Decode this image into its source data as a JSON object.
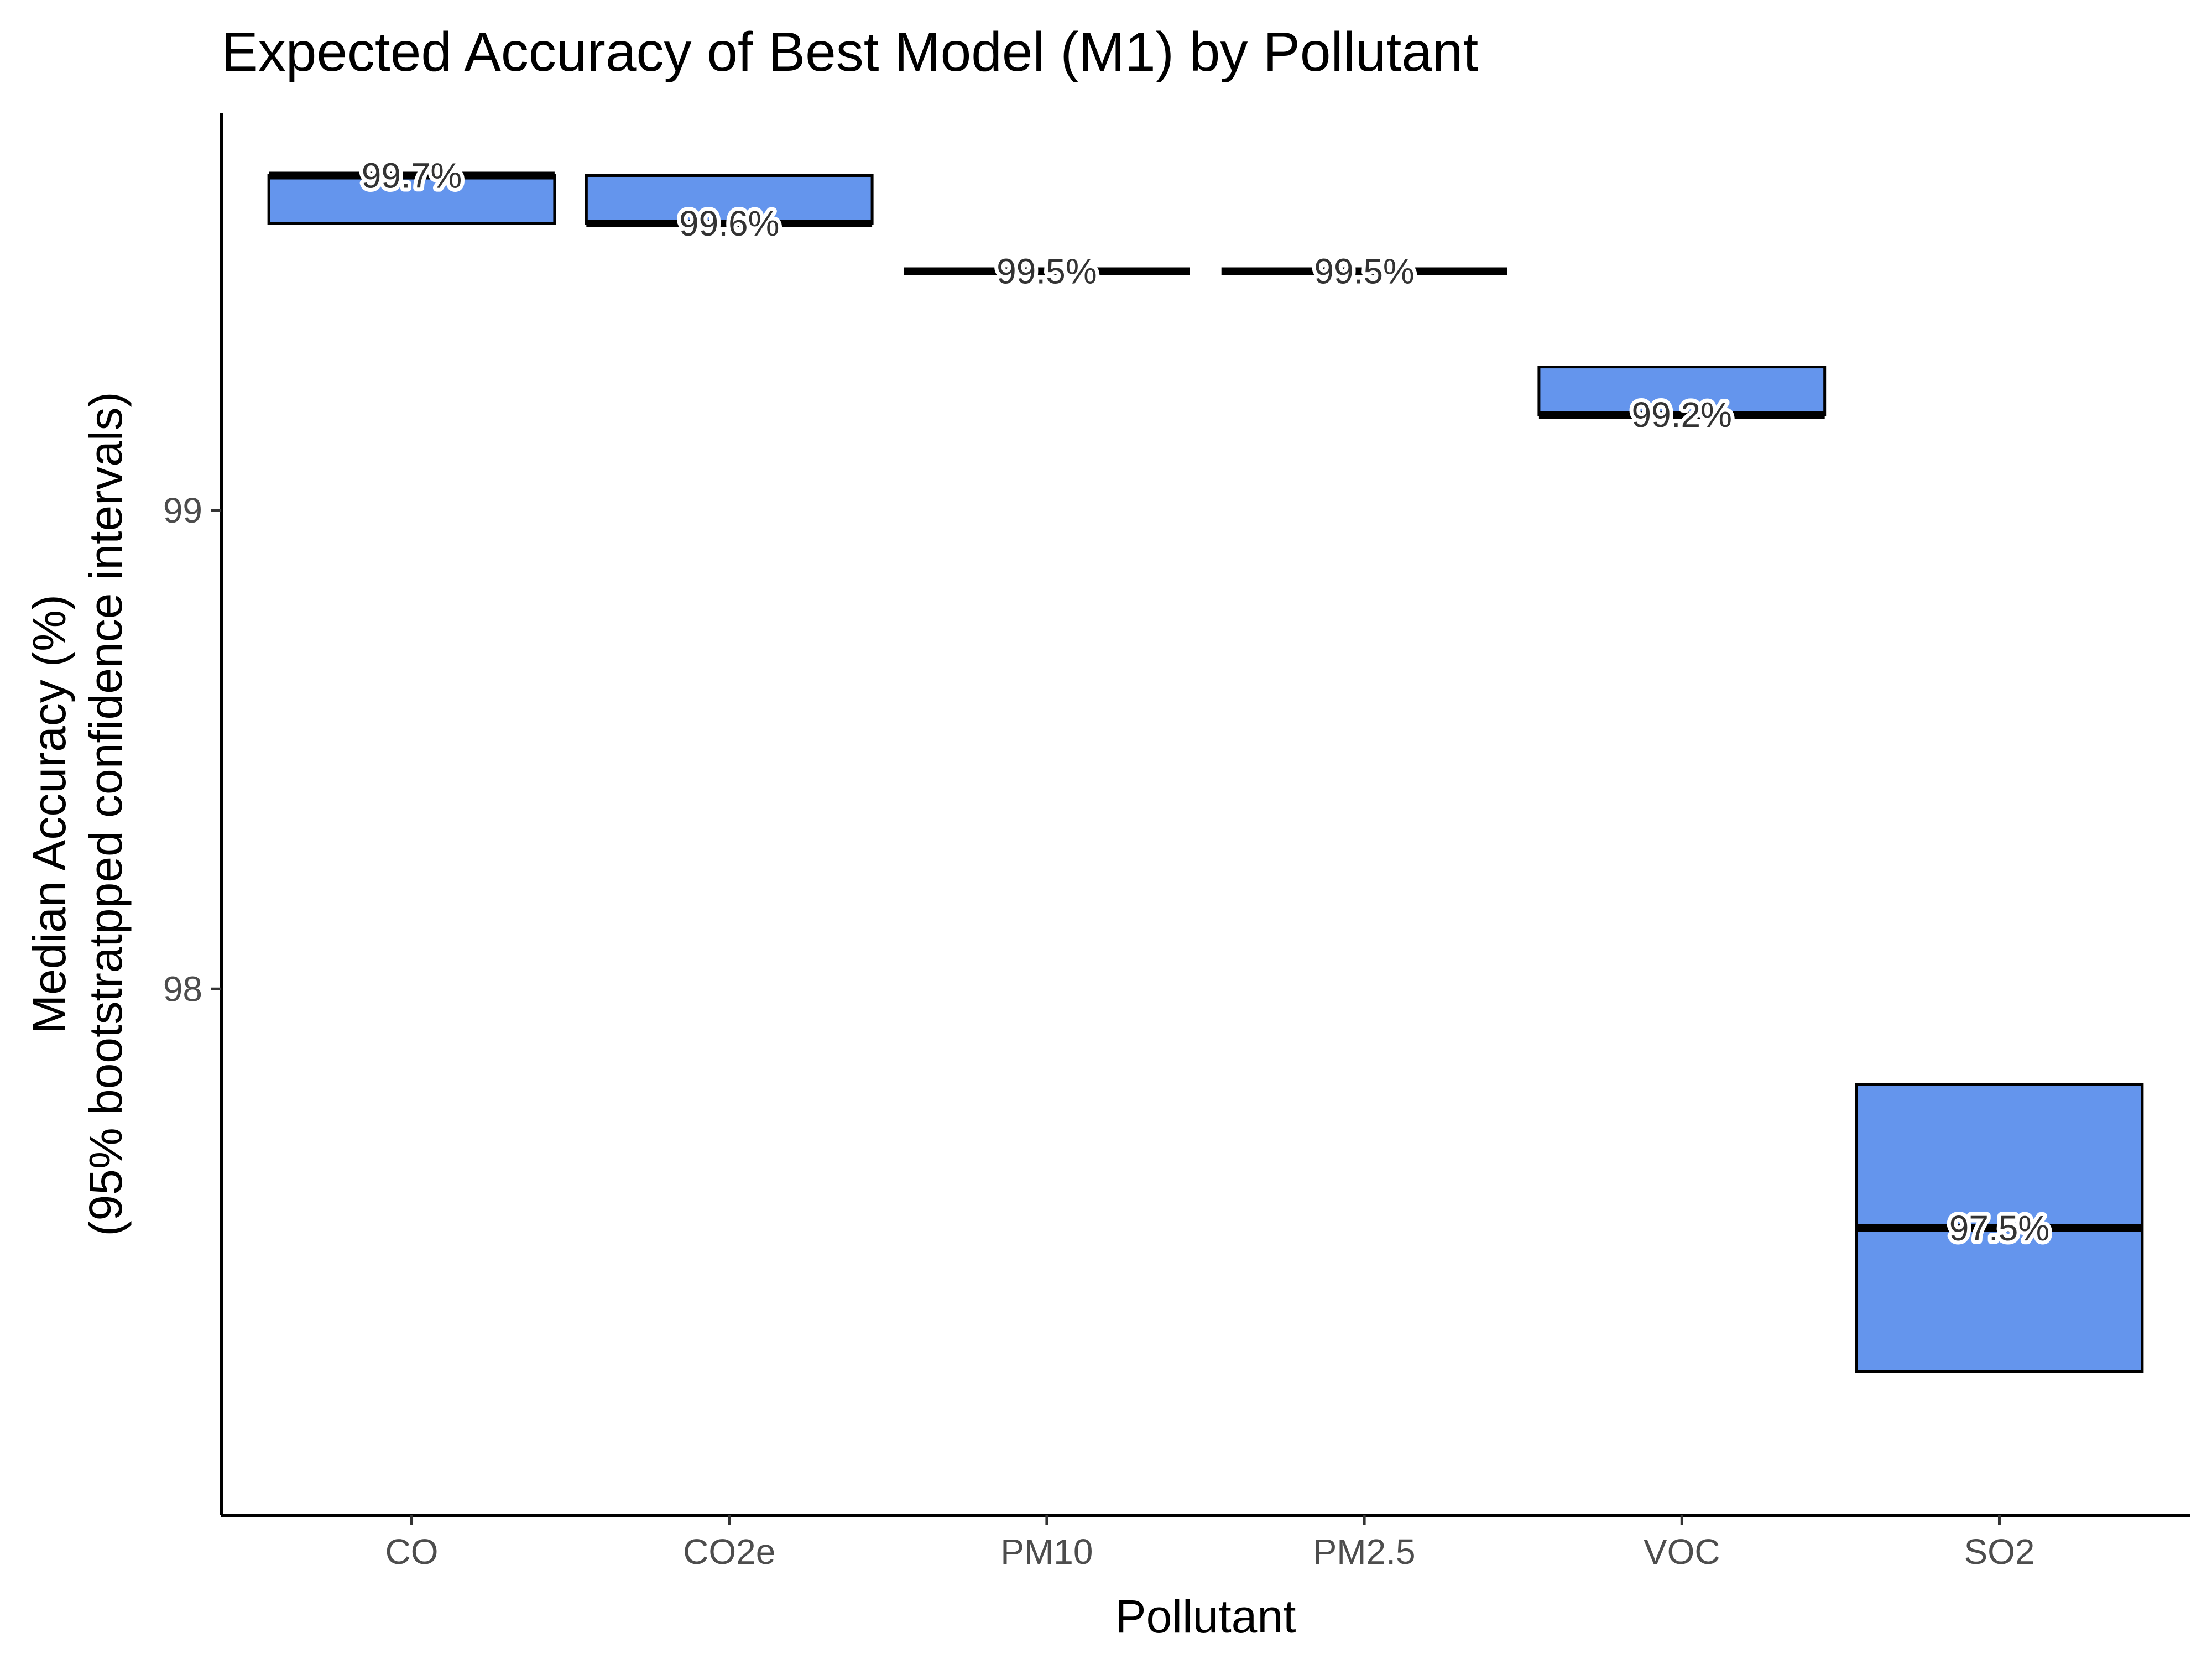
{
  "chart_data": {
    "type": "crossbar",
    "title": "Expected Accuracy of Best Model (M1) by Pollutant",
    "xlabel": "Pollutant",
    "ylabel_line1": "Median Accuracy (%)",
    "ylabel_line2": "(95% bootstratpped confidence intervals)",
    "ylim": [
      96.9,
      99.83
    ],
    "yticks": [
      98,
      99
    ],
    "ytick_labels": [
      "98",
      "99"
    ],
    "fill_color": "#6495ED",
    "categories": [
      "CO",
      "CO2e",
      "PM10",
      "PM2.5",
      "VOC",
      "SO2"
    ],
    "median": [
      99.7,
      99.6,
      99.5,
      99.5,
      99.2,
      97.5
    ],
    "lower": [
      99.6,
      99.6,
      99.5,
      99.5,
      99.2,
      97.2
    ],
    "upper": [
      99.7,
      99.7,
      99.5,
      99.5,
      99.3,
      97.8
    ],
    "labels": [
      "99.7%",
      "99.6%",
      "99.5%",
      "99.5%",
      "99.2%",
      "97.5%"
    ],
    "grid": false,
    "legend": "none"
  }
}
